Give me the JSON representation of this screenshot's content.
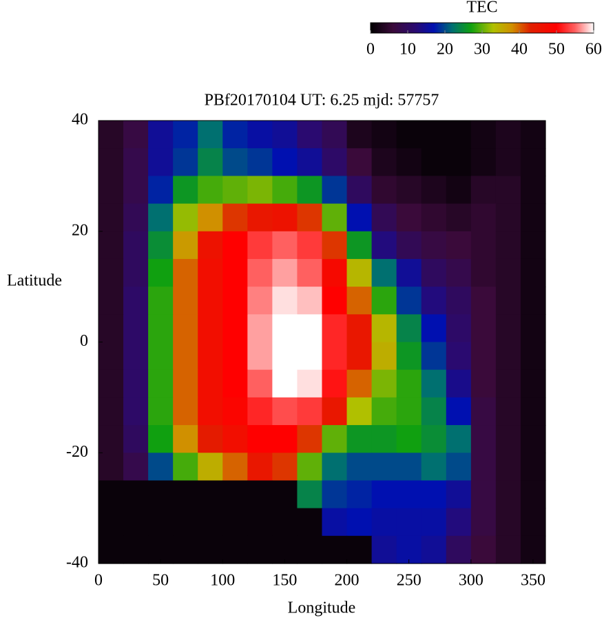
{
  "chart_data": {
    "type": "heatmap",
    "title": "PBf20170104  UT: 6.25  mjd: 57757",
    "xlabel": "Longitude",
    "ylabel": "Latitude",
    "xlim": [
      0,
      360
    ],
    "xticks": [
      0,
      50,
      100,
      150,
      200,
      250,
      300,
      350
    ],
    "ylim": [
      -40,
      40
    ],
    "yticks": [
      -40,
      -20,
      0,
      20,
      40
    ],
    "x": [
      10,
      30,
      50,
      70,
      90,
      110,
      130,
      150,
      170,
      190,
      210,
      230,
      250,
      270,
      290,
      310,
      330,
      350
    ],
    "y": [
      37.5,
      32.5,
      27.5,
      22.5,
      17.5,
      12.5,
      7.5,
      2.5,
      -2.5,
      -7.5,
      -12.5,
      -17.5,
      -22.5,
      -27.5,
      -32.5,
      -37.5
    ],
    "z": [
      [
        4,
        7,
        15,
        18,
        22,
        18,
        16,
        15,
        12,
        9,
        3,
        2,
        1,
        1,
        1,
        2,
        3,
        2
      ],
      [
        4,
        8,
        15,
        19,
        24,
        20,
        19,
        17,
        15,
        11,
        6,
        3,
        2,
        1,
        1,
        2,
        3,
        2
      ],
      [
        4,
        8,
        18,
        26,
        29,
        30,
        31,
        29,
        26,
        19,
        10,
        5,
        4,
        3,
        2,
        4,
        4,
        2
      ],
      [
        4,
        9,
        22,
        32,
        38,
        42,
        45,
        46,
        42,
        30,
        17,
        9,
        6,
        5,
        4,
        5,
        4,
        2
      ],
      [
        4,
        10,
        25,
        37,
        46,
        50,
        53,
        55,
        53,
        42,
        26,
        13,
        9,
        7,
        6,
        5,
        4,
        2
      ],
      [
        4,
        10,
        27,
        40,
        47,
        50,
        55,
        57,
        55,
        48,
        34,
        22,
        15,
        10,
        8,
        5,
        4,
        2
      ],
      [
        4,
        11,
        28,
        40,
        47,
        50,
        56,
        59,
        58,
        50,
        40,
        28,
        19,
        13,
        10,
        6,
        4,
        2
      ],
      [
        4,
        11,
        28,
        40,
        47,
        50,
        57,
        60,
        60,
        52,
        45,
        34,
        24,
        17,
        11,
        6,
        4,
        2
      ],
      [
        4,
        11,
        28,
        40,
        47,
        50,
        57,
        60,
        60,
        52,
        45,
        35,
        26,
        19,
        12,
        6,
        4,
        2
      ],
      [
        4,
        11,
        28,
        40,
        47,
        50,
        55,
        60,
        59,
        51,
        40,
        31,
        28,
        22,
        14,
        6,
        4,
        2
      ],
      [
        4,
        11,
        28,
        40,
        47,
        49,
        52,
        54,
        53,
        45,
        33,
        29,
        28,
        24,
        17,
        7,
        4,
        2
      ],
      [
        4,
        10,
        27,
        38,
        44,
        47,
        50,
        50,
        42,
        30,
        26,
        26,
        27,
        25,
        22,
        7,
        4,
        2
      ],
      [
        4,
        8,
        20,
        29,
        35,
        40,
        45,
        42,
        30,
        22,
        20,
        20,
        20,
        22,
        20,
        7,
        4,
        2
      ],
      [
        1,
        1,
        1,
        1,
        1,
        1,
        1,
        1,
        24,
        19,
        18,
        17,
        17,
        17,
        15,
        7,
        4,
        2
      ],
      [
        1,
        1,
        1,
        1,
        1,
        1,
        1,
        1,
        1,
        16,
        17,
        16,
        16,
        16,
        13,
        7,
        4,
        2
      ],
      [
        1,
        1,
        1,
        1,
        1,
        1,
        1,
        1,
        1,
        1,
        1,
        15,
        16,
        15,
        10,
        6,
        4,
        2
      ]
    ],
    "colorbar": {
      "label": "TEC",
      "clim": [
        0,
        60
      ],
      "ticks": [
        0,
        10,
        20,
        30,
        40,
        50,
        60
      ]
    },
    "colorscale": [
      [
        0,
        "#000000"
      ],
      [
        6,
        "#3a0a3a"
      ],
      [
        12,
        "#2a0a70"
      ],
      [
        17,
        "#0010b0"
      ],
      [
        22,
        "#007070"
      ],
      [
        27,
        "#10a010"
      ],
      [
        33,
        "#b0c000"
      ],
      [
        38,
        "#d09000"
      ],
      [
        43,
        "#e02000"
      ],
      [
        50,
        "#ff0000"
      ],
      [
        55,
        "#ff6060"
      ],
      [
        60,
        "#ffffff"
      ]
    ]
  }
}
